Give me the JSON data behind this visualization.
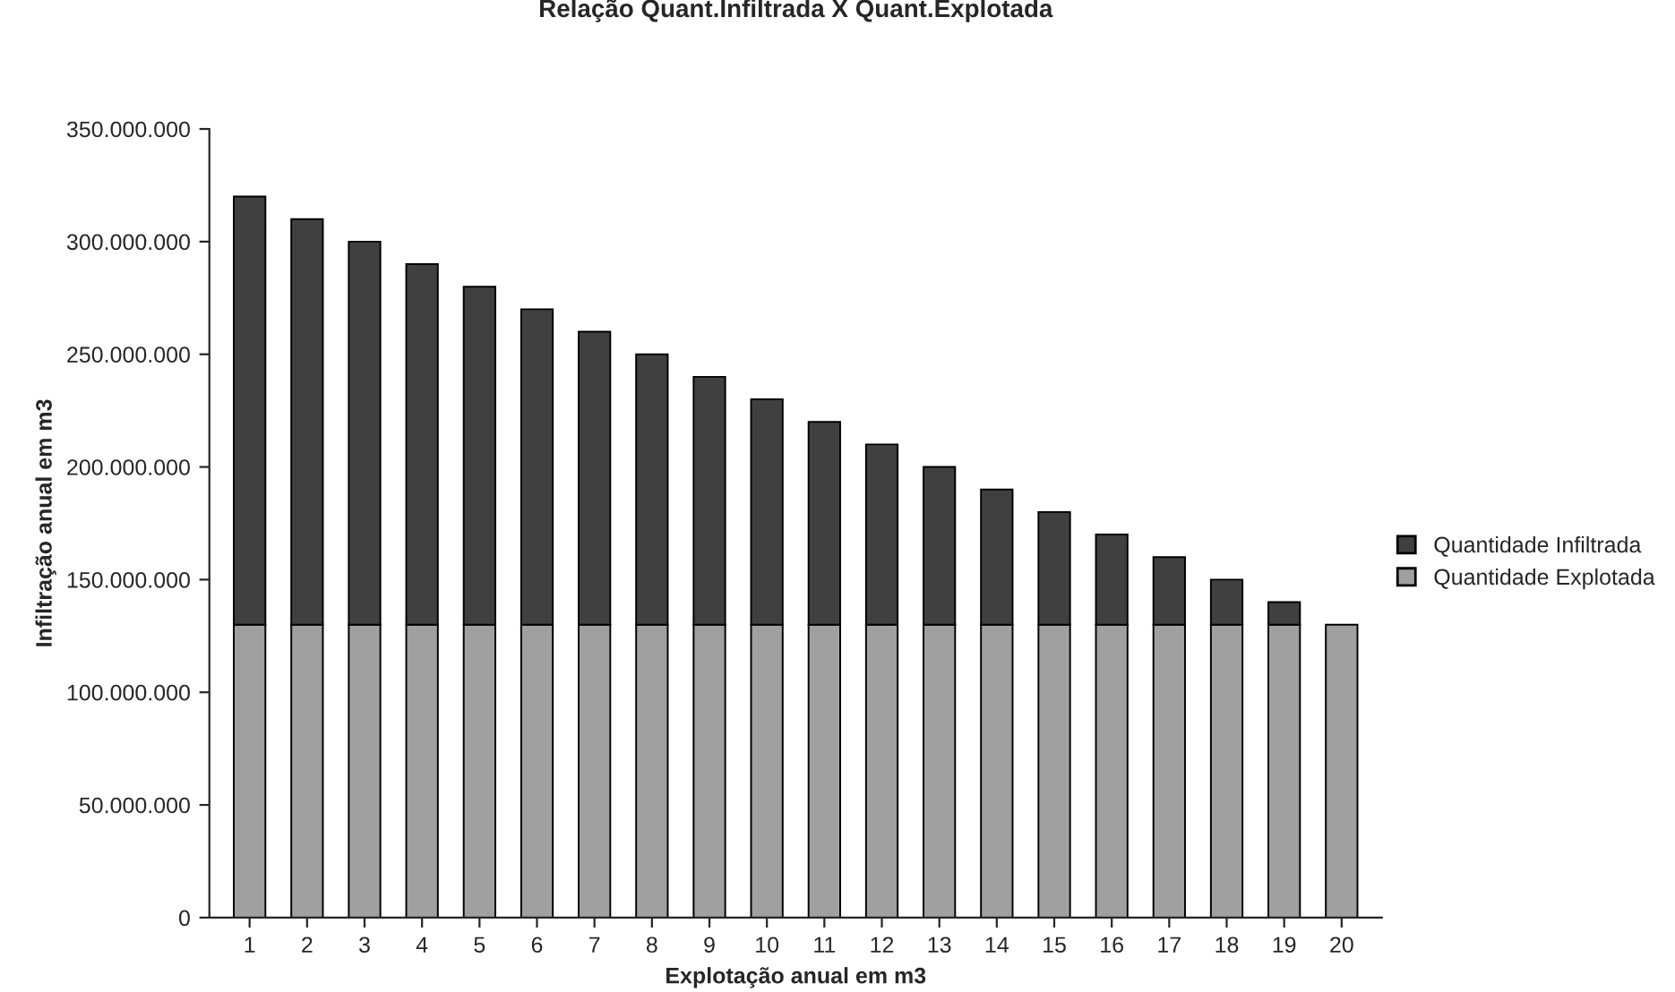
{
  "chart_data": {
    "type": "bar",
    "title": "Relação Quant.Infiltrada X Quant.Explotada",
    "xlabel": "Explotação anual em m3",
    "ylabel": "Infiltração anual em m3",
    "categories": [
      "1",
      "2",
      "3",
      "4",
      "5",
      "6",
      "7",
      "8",
      "9",
      "10",
      "11",
      "12",
      "13",
      "14",
      "15",
      "16",
      "17",
      "18",
      "19",
      "20"
    ],
    "stacked": true,
    "series": [
      {
        "name": "Quantidade Explotada",
        "color": "#a0a0a0",
        "values": [
          130000000,
          130000000,
          130000000,
          130000000,
          130000000,
          130000000,
          130000000,
          130000000,
          130000000,
          130000000,
          130000000,
          130000000,
          130000000,
          130000000,
          130000000,
          130000000,
          130000000,
          130000000,
          130000000,
          130000000
        ]
      },
      {
        "name": "Quantidade Infiltrada",
        "color": "#404040",
        "values": [
          190000000,
          180000000,
          170000000,
          160000000,
          150000000,
          140000000,
          130000000,
          120000000,
          110000000,
          100000000,
          90000000,
          80000000,
          70000000,
          60000000,
          50000000,
          40000000,
          30000000,
          20000000,
          10000000,
          null
        ]
      }
    ],
    "ylim": [
      0,
      350000000
    ],
    "yticks": [
      {
        "value": 0,
        "label": "0"
      },
      {
        "value": 50000000,
        "label": "50.000.000"
      },
      {
        "value": 100000000,
        "label": "100.000.000"
      },
      {
        "value": 150000000,
        "label": "150.000.000"
      },
      {
        "value": 200000000,
        "label": "200.000.000"
      },
      {
        "value": 250000000,
        "label": "250.000.000"
      },
      {
        "value": 300000000,
        "label": "300.000.000"
      },
      {
        "value": 350000000,
        "label": "350.000.000"
      }
    ],
    "grid": false,
    "legend": "right"
  }
}
